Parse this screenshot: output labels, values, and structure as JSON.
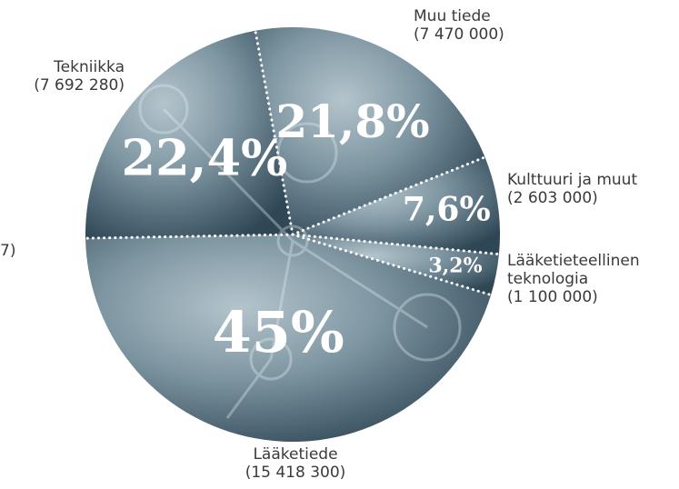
{
  "chart_data": {
    "type": "pie",
    "categories": [
      "Muu tiede",
      "Kulttuuri ja muut",
      "Lääketieteellinen teknologia",
      "Lääketiede",
      "Tekniikka"
    ],
    "values": [
      21.8,
      7.6,
      3.2,
      45,
      22.4
    ],
    "value_labels": [
      "21,8%",
      "7,6%",
      "3,2%",
      "45%",
      "22,4%"
    ],
    "amount_labels": [
      "(7 470 000)",
      "(2 603 000)",
      "(1 100 000)",
      "(15 418 300)",
      "(7 692 280)"
    ],
    "annotations": [
      "7)"
    ]
  }
}
